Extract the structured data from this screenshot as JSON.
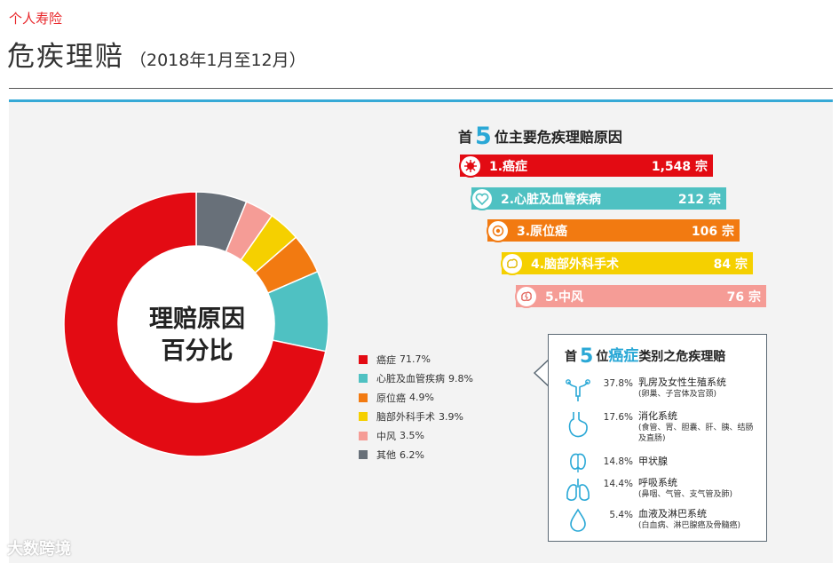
{
  "header": {
    "category": "个人寿险",
    "title": "危疾理赔",
    "period": "（2018年1月至12月）"
  },
  "chart_data": {
    "type": "pie",
    "title": "理赔原因百分比",
    "title_lines": [
      "理赔原因",
      "百分比"
    ],
    "slices": [
      {
        "label": "癌症",
        "value": 71.7,
        "display": "71.7%",
        "color": "#e30b13"
      },
      {
        "label": "心脏及血管疾病",
        "value": 9.8,
        "display": "9.8%",
        "color": "#4fc1c2"
      },
      {
        "label": "原位癌",
        "value": 4.9,
        "display": "4.9%",
        "color": "#f27a11"
      },
      {
        "label": "脑部外科手术",
        "value": 3.9,
        "display": "3.9%",
        "color": "#f5d000"
      },
      {
        "label": "中风",
        "value": 3.5,
        "display": "3.5%",
        "color": "#f59c96"
      },
      {
        "label": "其他",
        "value": 6.2,
        "display": "6.2%",
        "color": "#687079"
      }
    ]
  },
  "top5": {
    "title_prefix": "首",
    "title_num": "5",
    "title_suffix": "位主要危疾理赔原因",
    "items": [
      {
        "label": "1.癌症",
        "value": "1,548 宗",
        "color": "#e30b13",
        "icon": "cancer-cell-icon"
      },
      {
        "label": "2.心脏及血管疾病",
        "value": "212 宗",
        "color": "#4fc1c2",
        "icon": "heart-icon"
      },
      {
        "label": "3.原位癌",
        "value": "106 宗",
        "color": "#f27a11",
        "icon": "cell-icon"
      },
      {
        "label": "4.脑部外科手术",
        "value": "84 宗",
        "color": "#f5d000",
        "icon": "brain-icon"
      },
      {
        "label": "5.中风",
        "value": "76 宗",
        "color": "#f59c96",
        "icon": "stroke-brain-icon"
      }
    ]
  },
  "cancer": {
    "title_prefix": "首",
    "title_num": "5",
    "title_mid": "位",
    "title_hl": "癌症",
    "title_suffix": "类别之危疾理赔",
    "items": [
      {
        "pct": "37.8%",
        "name": "乳房及女性生殖系统",
        "sub": "(卵巢、子宫体及宫颈)",
        "icon": "uterus-icon"
      },
      {
        "pct": "17.6%",
        "name": "消化系统",
        "sub": "(食管、胃、胆囊、肝、胰、结肠及直肠)",
        "icon": "stomach-icon"
      },
      {
        "pct": "14.8%",
        "name": "甲状腺",
        "sub": "",
        "icon": "thyroid-icon"
      },
      {
        "pct": "14.4%",
        "name": "呼吸系统",
        "sub": "(鼻咽、气管、支气管及肺)",
        "icon": "lungs-icon"
      },
      {
        "pct": "5.4%",
        "name": "血液及淋巴系统",
        "sub": "(白血病、淋巴腺癌及骨髓癌)",
        "icon": "blood-drop-icon"
      }
    ]
  },
  "watermark": "大数跨境"
}
